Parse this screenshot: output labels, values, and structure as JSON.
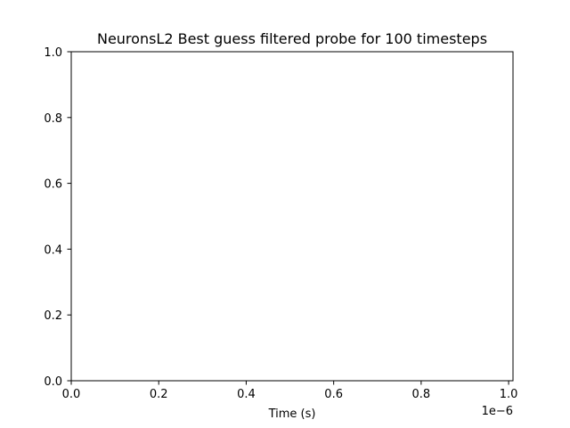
{
  "chart_data": {
    "type": "line",
    "title": "NeuronsL2 Best guess filtered probe for 100 timesteps",
    "xlabel": "Time (s)",
    "ylabel": "",
    "x_offset_label": "1e−6",
    "xlim": [
      0.0,
      1.01
    ],
    "ylim": [
      0.0,
      1.0
    ],
    "x_ticks": [
      {
        "value": 0.0,
        "label": "0.0"
      },
      {
        "value": 0.2,
        "label": "0.2"
      },
      {
        "value": 0.4,
        "label": "0.4"
      },
      {
        "value": 0.6,
        "label": "0.6"
      },
      {
        "value": 0.8,
        "label": "0.8"
      },
      {
        "value": 1.0,
        "label": "1.0"
      }
    ],
    "y_ticks": [
      {
        "value": 0.0,
        "label": "0.0"
      },
      {
        "value": 0.2,
        "label": "0.2"
      },
      {
        "value": 0.4,
        "label": "0.4"
      },
      {
        "value": 0.6,
        "label": "0.6"
      },
      {
        "value": 0.8,
        "label": "0.8"
      },
      {
        "value": 1.0,
        "label": "1.0"
      }
    ],
    "series": [],
    "grid": false,
    "legend": "none",
    "colors": {
      "axes": "#000000",
      "background": "#ffffff"
    }
  }
}
